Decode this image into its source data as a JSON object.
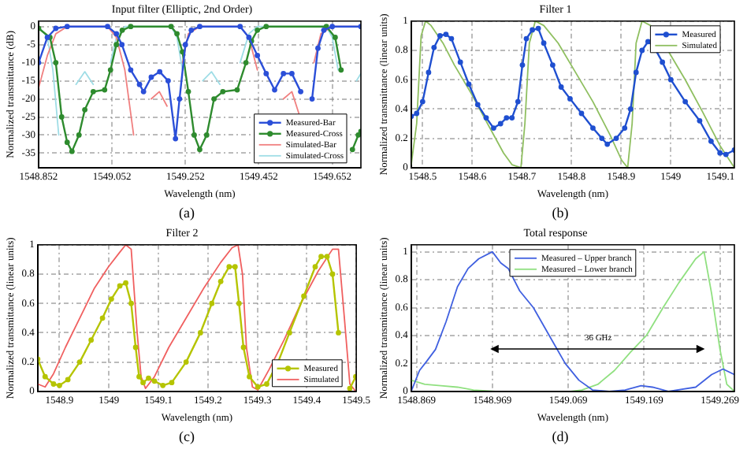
{
  "chart_data": [
    {
      "type": "line",
      "title": "Input filter (Elliptic, 2nd Order)",
      "xlabel": "Wavelength (nm)",
      "ylabel": "Normalized transmittance (dB)",
      "xlim": [
        1548.852,
        1549.73
      ],
      "ylim": [
        -39,
        1.5
      ],
      "xticks": [
        1548.852,
        1549.052,
        1549.252,
        1549.452,
        1549.652
      ],
      "yticks": [
        -35,
        -30,
        -25,
        -20,
        -15,
        -10,
        -5,
        0
      ],
      "grid": true,
      "legend": "bottom right",
      "annotations": [
        "(a)"
      ],
      "series": [
        {
          "name": "Measured-Bar",
          "color": "#2b4fd8",
          "marker": "circle",
          "x": [
            1548.852,
            1548.876,
            1548.899,
            1548.93,
            1549.04,
            1549.064,
            1549.079,
            1549.103,
            1549.127,
            1549.138,
            1549.159,
            1549.182,
            1549.205,
            1549.225,
            1549.236,
            1549.252,
            1549.268,
            1549.291,
            1549.401,
            1549.425,
            1549.448,
            1549.472,
            1549.495,
            1549.519,
            1549.542,
            1549.566,
            1549.586,
            1549.597,
            1549.613,
            1549.629,
            1549.652,
            1549.73
          ],
          "values": [
            -10,
            -3,
            -0.5,
            0,
            0,
            -2,
            -5,
            -12,
            -16,
            -18,
            -14,
            -12.5,
            -15,
            -31,
            -20,
            -5,
            -1,
            0,
            0,
            -3,
            -8,
            -13,
            -17.5,
            -13,
            -13,
            -18,
            null,
            -20,
            -6,
            -1,
            0,
            0
          ]
        },
        {
          "name": "Measured-Cross",
          "color": "#2e8b2e",
          "marker": "circle",
          "x": [
            1548.852,
            1548.883,
            1548.899,
            1548.915,
            1548.93,
            1548.943,
            1548.962,
            1548.978,
            1549.001,
            1549.032,
            1549.048,
            1549.064,
            1549.08,
            1549.103,
            1549.213,
            1549.229,
            1549.244,
            1549.26,
            1549.276,
            1549.291,
            1549.31,
            1549.33,
            1549.354,
            1549.393,
            1549.417,
            1549.432,
            1549.448,
            1549.472,
            1549.636,
            1549.66,
            1549.676,
            1549.691,
            1549.707,
            1549.723,
            1549.73
          ],
          "values": [
            -0.5,
            -3,
            -10,
            -25,
            -32,
            -34.5,
            -30,
            -23,
            -18,
            -17.5,
            -12,
            -5,
            -1,
            0,
            0,
            -2,
            -7,
            -18,
            -30,
            -34,
            -30,
            -20,
            -18,
            -17.5,
            -10,
            -4,
            -1,
            0,
            0,
            -3,
            -12,
            null,
            -34,
            -30,
            -29
          ]
        },
        {
          "name": "Simulated-Bar",
          "color": "#f08080",
          "x": [
            1548.852,
            1548.876,
            1548.899,
            1548.93,
            1549.04,
            1549.064,
            1549.087,
            1549.111,
            1549.122,
            1549.138,
            1549.159,
            1549.181,
            1549.202,
            1549.216,
            1549.232,
            1549.244,
            1549.26,
            1549.291,
            1549.401,
            1549.425,
            1549.448,
            1549.472,
            1549.48,
            1549.498,
            1549.519,
            1549.542,
            1549.561,
            1549.574,
            1549.589,
            1549.602,
            1549.621,
            1549.652,
            1549.73
          ],
          "values": [
            -17,
            -8,
            -2,
            0,
            0,
            -3,
            -12,
            -30,
            null,
            null,
            -20,
            -18,
            -22,
            null,
            null,
            -10,
            -2,
            0,
            0,
            -3,
            -12,
            null,
            null,
            null,
            -20,
            -18,
            -24,
            null,
            null,
            -10,
            -2,
            0,
            0
          ]
        },
        {
          "name": "Simulated-Cross",
          "color": "#9fdde6",
          "x": [
            1548.852,
            1548.876,
            1548.891,
            1548.907,
            1548.915,
            1548.93,
            1548.954,
            1548.978,
            1549.001,
            1549.017,
            1549.032,
            1549.048,
            1549.064,
            1549.087,
            1549.213,
            1549.229,
            1549.244,
            1549.26,
            1549.276,
            1549.299,
            1549.323,
            1549.346,
            1549.362,
            1549.378,
            1549.401,
            1549.425,
            1549.448,
            1549.636,
            1549.652,
            1549.668,
            1549.683,
            1549.699,
            1549.718,
            1549.73
          ],
          "values": [
            0,
            -3,
            -12,
            -30,
            null,
            null,
            -16,
            -12.5,
            -16,
            null,
            null,
            -10,
            -3,
            0,
            0,
            -3,
            -12,
            null,
            null,
            -15,
            -12.5,
            -16,
            null,
            null,
            -10,
            -2,
            0,
            0,
            -3,
            -12,
            null,
            null,
            -15,
            -13
          ]
        }
      ]
    },
    {
      "type": "line",
      "title": "Filter 1",
      "xlabel": "Wavelength (nm)",
      "ylabel": "Normalized transmittance (linear units)",
      "xlim": [
        1548.477,
        1549.128
      ],
      "ylim": [
        0,
        1
      ],
      "xticks": [
        1548.5,
        1548.6,
        1548.7,
        1548.8,
        1548.9,
        1549,
        1549.1
      ],
      "yticks": [
        0,
        0.2,
        0.4,
        0.6,
        0.8,
        1
      ],
      "grid": true,
      "legend": "top right",
      "annotations": [
        "(b)"
      ],
      "series": [
        {
          "name": "Measured",
          "color": "#1f4fd0",
          "marker": "circle",
          "x": [
            1548.477,
            1548.488,
            1548.5,
            1548.512,
            1548.523,
            1548.535,
            1548.547,
            1548.558,
            1548.576,
            1548.593,
            1548.611,
            1548.628,
            1548.643,
            1548.657,
            1548.669,
            1548.68,
            1548.692,
            1548.701,
            1548.709,
            1548.721,
            1548.733,
            1548.744,
            1548.762,
            1548.779,
            1548.797,
            1548.82,
            1548.843,
            1548.861,
            1548.872,
            1548.89,
            1548.907,
            1548.919,
            1548.93,
            1548.942,
            1548.954,
            1548.965,
            1548.983,
            1549.0,
            1549.029,
            1549.058,
            1549.081,
            1549.099,
            1549.111,
            1549.128
          ],
          "values": [
            0.35,
            0.37,
            0.45,
            0.65,
            0.82,
            0.9,
            0.91,
            0.88,
            0.72,
            0.57,
            0.43,
            0.34,
            0.27,
            0.3,
            0.34,
            0.34,
            0.45,
            0.7,
            0.88,
            0.94,
            0.95,
            0.85,
            0.7,
            0.55,
            0.47,
            0.37,
            0.27,
            0.2,
            0.16,
            0.2,
            0.27,
            0.4,
            0.65,
            0.8,
            0.86,
            0.83,
            0.72,
            0.6,
            0.45,
            0.32,
            0.18,
            0.1,
            0.09,
            0.12
          ]
        },
        {
          "name": "Simulated",
          "color": "#8fbf60",
          "x": [
            1548.477,
            1548.488,
            1548.497,
            1548.506,
            1548.517,
            1548.541,
            1548.564,
            1548.599,
            1548.634,
            1548.663,
            1548.68,
            1548.698,
            1548.706,
            1548.715,
            1548.727,
            1548.744,
            1548.773,
            1548.808,
            1548.843,
            1548.878,
            1548.901,
            1548.913,
            1548.922,
            1548.93,
            1548.942,
            1548.959,
            1548.994,
            1549.029,
            1549.064,
            1549.099,
            1549.128
          ],
          "values": [
            0.02,
            0.3,
            0.9,
            1,
            0.97,
            0.85,
            0.7,
            0.5,
            0.28,
            0.1,
            0.02,
            0,
            0.3,
            0.85,
            1,
            0.97,
            0.85,
            0.65,
            0.45,
            0.22,
            0.05,
            0,
            0.3,
            0.85,
            1,
            0.97,
            0.8,
            0.6,
            0.38,
            0.15,
            0
          ]
        }
      ]
    },
    {
      "type": "line",
      "title": "Filter 2",
      "xlabel": "Wavelength (nm)",
      "ylabel": "Normalized transmittance (linear units)",
      "xlim": [
        1548.856,
        1549.5
      ],
      "ylim": [
        0,
        1
      ],
      "xticks": [
        1548.9,
        1549,
        1549.1,
        1549.2,
        1549.3,
        1549.4,
        1549.5
      ],
      "yticks": [
        0,
        0.2,
        0.4,
        0.6,
        0.8,
        1
      ],
      "grid": true,
      "legend": "bottom right",
      "annotations": [
        "(c)"
      ],
      "series": [
        {
          "name": "Measured",
          "color": "#b5c400",
          "marker": "circle",
          "x": [
            1548.856,
            1548.871,
            1548.888,
            1548.9,
            1548.917,
            1548.941,
            1548.964,
            1548.987,
            1549.005,
            1549.022,
            1549.034,
            1549.045,
            1549.054,
            1549.061,
            1549.069,
            1549.08,
            1549.092,
            1549.109,
            1549.127,
            1549.156,
            1549.185,
            1549.208,
            1549.226,
            1549.243,
            1549.255,
            1549.263,
            1549.272,
            1549.284,
            1549.301,
            1549.319,
            1549.342,
            1549.365,
            1549.394,
            1549.417,
            1549.429,
            1549.441,
            1549.452,
            1549.464,
            1549.476,
            1549.487,
            1549.499
          ],
          "values": [
            0.22,
            0.1,
            0.05,
            0.04,
            0.08,
            0.2,
            0.35,
            0.5,
            0.63,
            0.72,
            0.74,
            0.6,
            0.3,
            0.1,
            0.06,
            0.09,
            0.07,
            0.04,
            0.06,
            0.2,
            0.4,
            0.6,
            0.75,
            0.85,
            0.85,
            0.6,
            0.3,
            0.1,
            0.03,
            0.05,
            0.2,
            0.4,
            0.65,
            0.85,
            0.92,
            0.92,
            0.8,
            0.4,
            null,
            0.02,
            0.1
          ]
        },
        {
          "name": "Simulated",
          "color": "#f06060",
          "x": [
            1548.856,
            1548.871,
            1548.888,
            1548.912,
            1548.941,
            1548.97,
            1548.999,
            1549.022,
            1549.034,
            1549.045,
            1549.057,
            1549.065,
            1549.074,
            1549.092,
            1549.121,
            1549.156,
            1549.191,
            1549.226,
            1549.249,
            1549.261,
            1549.27,
            1549.278,
            1549.29,
            1549.301,
            1549.324,
            1549.354,
            1549.388,
            1549.423,
            1549.452,
            1549.464,
            1549.476,
            1549.487,
            1549.499
          ],
          "values": [
            0.05,
            0.03,
            0.12,
            0.3,
            0.5,
            0.7,
            0.85,
            0.95,
            1,
            0.97,
            0.4,
            0.1,
            0.02,
            0.1,
            0.3,
            0.5,
            0.7,
            0.88,
            0.98,
            1,
            0.8,
            0.3,
            0.03,
            0.01,
            0.15,
            0.35,
            0.6,
            0.82,
            0.97,
            0.97,
            0.5,
            0.05,
            0
          ]
        }
      ]
    },
    {
      "type": "line",
      "title": "Total response",
      "xlabel": "Wavelength (nm)",
      "ylabel": "Normalized transmittance (linear units)",
      "xlim": [
        1548.862,
        1549.288
      ],
      "ylim": [
        0,
        1.05
      ],
      "xticks": [
        1548.869,
        1548.969,
        1549.069,
        1549.169,
        1549.269
      ],
      "yticks": [
        0,
        0.2,
        0.4,
        0.6,
        0.8,
        1
      ],
      "grid": true,
      "legend": "top",
      "annotations": [
        "36 GHz",
        "(d)"
      ],
      "series": [
        {
          "name": "Measured – Upper branch",
          "color": "#4060e0",
          "x": [
            1548.862,
            1548.873,
            1548.883,
            1548.894,
            1548.908,
            1548.923,
            1548.937,
            1548.951,
            1548.969,
            1548.98,
            1548.99,
            1549.005,
            1549.023,
            1549.044,
            1549.065,
            1549.083,
            1549.101,
            1549.123,
            1549.144,
            1549.165,
            1549.18,
            1549.201,
            1549.237,
            1549.258,
            1549.273,
            1549.288
          ],
          "values": [
            0,
            0.15,
            0.22,
            0.3,
            0.5,
            0.75,
            0.88,
            0.95,
            1,
            0.92,
            0.88,
            0.72,
            0.6,
            0.4,
            0.2,
            0.08,
            0.01,
            0,
            0.01,
            0.04,
            0.03,
            0,
            0.03,
            0.12,
            0.16,
            0.12
          ]
        },
        {
          "name": "Measured – Lower branch",
          "color": "#90e080",
          "x": [
            1548.862,
            1548.88,
            1548.901,
            1548.923,
            1548.944,
            1548.973,
            1549.072,
            1549.087,
            1549.108,
            1549.13,
            1549.151,
            1549.172,
            1549.194,
            1549.215,
            1549.237,
            1549.248,
            1549.258,
            1549.269,
            1549.278,
            1549.288
          ],
          "values": [
            0.08,
            0.05,
            0.04,
            0.03,
            0.01,
            0,
            0,
            0.01,
            0.05,
            0.15,
            0.28,
            0.4,
            0.6,
            0.78,
            0.95,
            1,
            0.7,
            0.3,
            0.05,
            0
          ]
        }
      ]
    }
  ]
}
